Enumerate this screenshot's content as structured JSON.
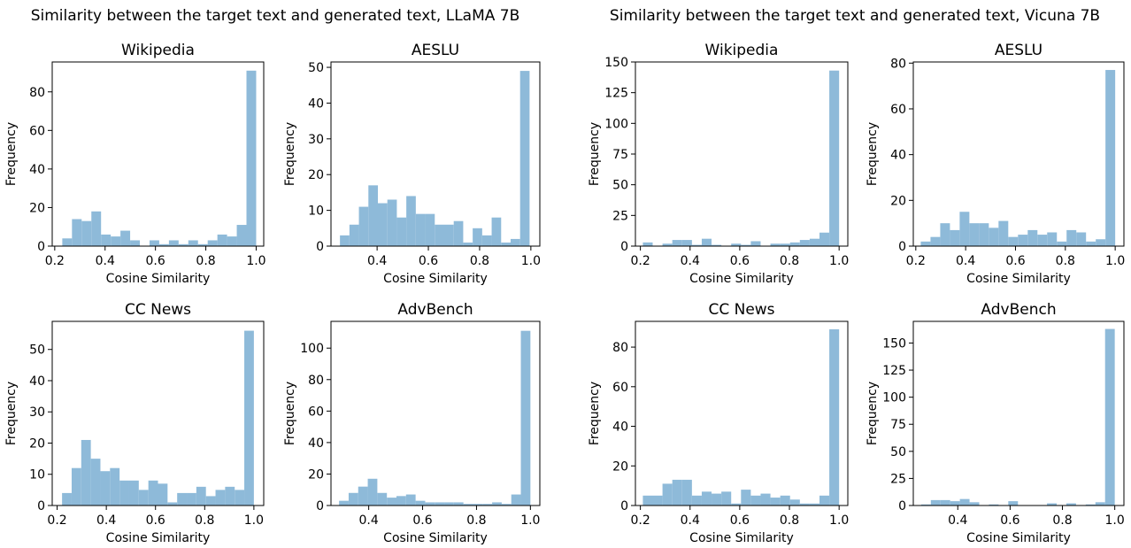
{
  "figure": {
    "suptitles": [
      "Similarity between the target text and generated text, LLaMA 7B",
      "Similarity between the target text and generated text, Vicuna 7B"
    ]
  },
  "chart_data": [
    {
      "type": "bar",
      "model": "LLaMA 7B",
      "title": "Wikipedia",
      "xlabel": "Cosine Similarity",
      "ylabel": "Frequency",
      "xlim": [
        0.19,
        1.03
      ],
      "ylim": [
        0,
        95.5
      ],
      "xticks": [
        0.2,
        0.4,
        0.6,
        0.8,
        1.0
      ],
      "xtick_labels": [
        "0.2",
        "0.4",
        "0.6",
        "0.8",
        "1.0"
      ],
      "yticks": [
        0,
        20,
        40,
        60,
        80
      ],
      "bin_edges": [
        0.23,
        0.2685,
        0.307,
        0.3455,
        0.384,
        0.4225,
        0.461,
        0.4995,
        0.538,
        0.5765,
        0.615,
        0.6535,
        0.692,
        0.7305,
        0.769,
        0.8075,
        0.846,
        0.8845,
        0.923,
        0.9615,
        1.0
      ],
      "values": [
        4,
        14,
        13,
        18,
        6,
        5,
        8,
        3,
        0,
        3,
        1,
        3,
        1,
        3,
        1,
        3,
        6,
        5,
        11,
        91
      ]
    },
    {
      "type": "bar",
      "model": "LLaMA 7B",
      "title": "AESLU",
      "xlabel": "Cosine Similarity",
      "ylabel": "Frequency",
      "xlim": [
        0.22,
        1.035
      ],
      "ylim": [
        0,
        51.5
      ],
      "xticks": [
        0.4,
        0.6,
        0.8,
        1.0
      ],
      "xtick_labels": [
        "0.4",
        "0.6",
        "0.8",
        "1.0"
      ],
      "yticks": [
        0,
        10,
        20,
        30,
        40,
        50
      ],
      "bin_edges": [
        0.255,
        0.292,
        0.329,
        0.366,
        0.403,
        0.44,
        0.477,
        0.514,
        0.551,
        0.588,
        0.625,
        0.662,
        0.699,
        0.736,
        0.773,
        0.81,
        0.847,
        0.884,
        0.921,
        0.958,
        0.995
      ],
      "values": [
        3,
        6,
        11,
        17,
        12,
        13,
        8,
        14,
        9,
        9,
        6,
        6,
        7,
        1,
        5,
        3,
        8,
        1,
        2,
        49
      ]
    },
    {
      "type": "bar",
      "model": "Vicuna 7B",
      "title": "Wikipedia",
      "xlabel": "Cosine Similarity",
      "ylabel": "Frequency",
      "xlim": [
        0.18,
        1.035
      ],
      "ylim": [
        0,
        150
      ],
      "xticks": [
        0.2,
        0.4,
        0.6,
        0.8,
        1.0
      ],
      "xtick_labels": [
        "0.2",
        "0.4",
        "0.6",
        "0.8",
        "1.0"
      ],
      "yticks": [
        0,
        25,
        50,
        75,
        100,
        125,
        150
      ],
      "bin_edges": [
        0.21,
        0.2495,
        0.289,
        0.3285,
        0.368,
        0.4075,
        0.447,
        0.4865,
        0.526,
        0.5655,
        0.605,
        0.6445,
        0.684,
        0.7235,
        0.763,
        0.8025,
        0.842,
        0.8815,
        0.921,
        0.9605,
        1.0
      ],
      "values": [
        3,
        0,
        2,
        5,
        5,
        1,
        6,
        1,
        0,
        2,
        1,
        4,
        0,
        2,
        2,
        3,
        5,
        6,
        11,
        143
      ]
    },
    {
      "type": "bar",
      "model": "Vicuna 7B",
      "title": "AESLU",
      "xlabel": "Cosine Similarity",
      "ylabel": "Frequency",
      "xlim": [
        0.19,
        1.035
      ],
      "ylim": [
        0,
        80.5
      ],
      "xticks": [
        0.2,
        0.4,
        0.6,
        0.8,
        1.0
      ],
      "xtick_labels": [
        "0.2",
        "0.4",
        "0.6",
        "0.8",
        "1.0"
      ],
      "yticks": [
        0,
        20,
        40,
        60,
        80
      ],
      "bin_edges": [
        0.22,
        0.259,
        0.298,
        0.337,
        0.376,
        0.415,
        0.454,
        0.493,
        0.532,
        0.571,
        0.61,
        0.649,
        0.688,
        0.727,
        0.766,
        0.805,
        0.844,
        0.883,
        0.922,
        0.961,
        1.0
      ],
      "values": [
        2,
        4,
        10,
        7,
        15,
        10,
        10,
        8,
        11,
        4,
        5,
        7,
        5,
        6,
        2,
        7,
        6,
        2,
        3,
        77
      ]
    },
    {
      "type": "bar",
      "model": "LLaMA 7B",
      "title": "CC News",
      "xlabel": "Cosine Similarity",
      "ylabel": "Frequency",
      "xlim": [
        0.18,
        1.04
      ],
      "ylim": [
        0,
        59
      ],
      "xticks": [
        0.2,
        0.4,
        0.6,
        0.8,
        1.0
      ],
      "xtick_labels": [
        "0.2",
        "0.4",
        "0.6",
        "0.8",
        "1.0"
      ],
      "yticks": [
        0,
        10,
        20,
        30,
        40,
        50
      ],
      "bin_edges": [
        0.22,
        0.259,
        0.298,
        0.337,
        0.376,
        0.415,
        0.454,
        0.493,
        0.532,
        0.571,
        0.61,
        0.649,
        0.688,
        0.727,
        0.766,
        0.805,
        0.844,
        0.883,
        0.922,
        0.961,
        1.0
      ],
      "values": [
        4,
        12,
        21,
        15,
        11,
        12,
        8,
        8,
        5,
        8,
        7,
        1,
        4,
        4,
        6,
        3,
        5,
        6,
        5,
        56
      ]
    },
    {
      "type": "bar",
      "model": "LLaMA 7B",
      "title": "AdvBench",
      "xlabel": "Cosine Similarity",
      "ylabel": "Frequency",
      "xlim": [
        0.26,
        1.035
      ],
      "ylim": [
        0,
        117
      ],
      "xticks": [
        0.4,
        0.6,
        0.8,
        1.0
      ],
      "xtick_labels": [
        "0.4",
        "0.6",
        "0.8",
        "1.0"
      ],
      "yticks": [
        0,
        20,
        40,
        60,
        80,
        100
      ],
      "bin_edges": [
        0.29,
        0.3255,
        0.361,
        0.3965,
        0.432,
        0.4675,
        0.503,
        0.5385,
        0.574,
        0.6095,
        0.645,
        0.6805,
        0.716,
        0.7515,
        0.787,
        0.8225,
        0.858,
        0.8935,
        0.929,
        0.9645,
        1.0
      ],
      "values": [
        3,
        8,
        12,
        17,
        8,
        5,
        6,
        7,
        3,
        2,
        2,
        2,
        2,
        1,
        1,
        1,
        2,
        1,
        7,
        111
      ]
    },
    {
      "type": "bar",
      "model": "Vicuna 7B",
      "title": "CC News",
      "xlabel": "Cosine Similarity",
      "ylabel": "Frequency",
      "xlim": [
        0.18,
        1.035
      ],
      "ylim": [
        0,
        93
      ],
      "xticks": [
        0.2,
        0.4,
        0.6,
        0.8,
        1.0
      ],
      "xtick_labels": [
        "0.2",
        "0.4",
        "0.6",
        "0.8",
        "1.0"
      ],
      "yticks": [
        0,
        20,
        40,
        60,
        80
      ],
      "bin_edges": [
        0.21,
        0.2495,
        0.289,
        0.3285,
        0.368,
        0.4075,
        0.447,
        0.4865,
        0.526,
        0.5655,
        0.605,
        0.6445,
        0.684,
        0.7235,
        0.763,
        0.8025,
        0.842,
        0.8815,
        0.921,
        0.9605,
        1.0
      ],
      "values": [
        5,
        5,
        11,
        13,
        13,
        5,
        7,
        6,
        7,
        1,
        8,
        5,
        6,
        4,
        5,
        3,
        1,
        1,
        5,
        89
      ]
    },
    {
      "type": "bar",
      "model": "Vicuna 7B",
      "title": "AdvBench",
      "xlabel": "Cosine Similarity",
      "ylabel": "Frequency",
      "xlim": [
        0.23,
        1.035
      ],
      "ylim": [
        0,
        170
      ],
      "xticks": [
        0.4,
        0.6,
        0.8,
        1.0
      ],
      "xtick_labels": [
        "0.4",
        "0.6",
        "0.8",
        "1.0"
      ],
      "yticks": [
        0,
        25,
        50,
        75,
        100,
        125,
        150
      ],
      "bin_edges": [
        0.26,
        0.297,
        0.334,
        0.371,
        0.408,
        0.445,
        0.482,
        0.519,
        0.556,
        0.593,
        0.63,
        0.667,
        0.704,
        0.741,
        0.778,
        0.815,
        0.852,
        0.889,
        0.926,
        0.963,
        1.0
      ],
      "values": [
        1,
        5,
        5,
        4,
        6,
        3,
        0,
        1,
        0,
        4,
        0,
        0,
        0,
        2,
        0,
        2,
        0,
        1,
        3,
        163
      ]
    }
  ]
}
